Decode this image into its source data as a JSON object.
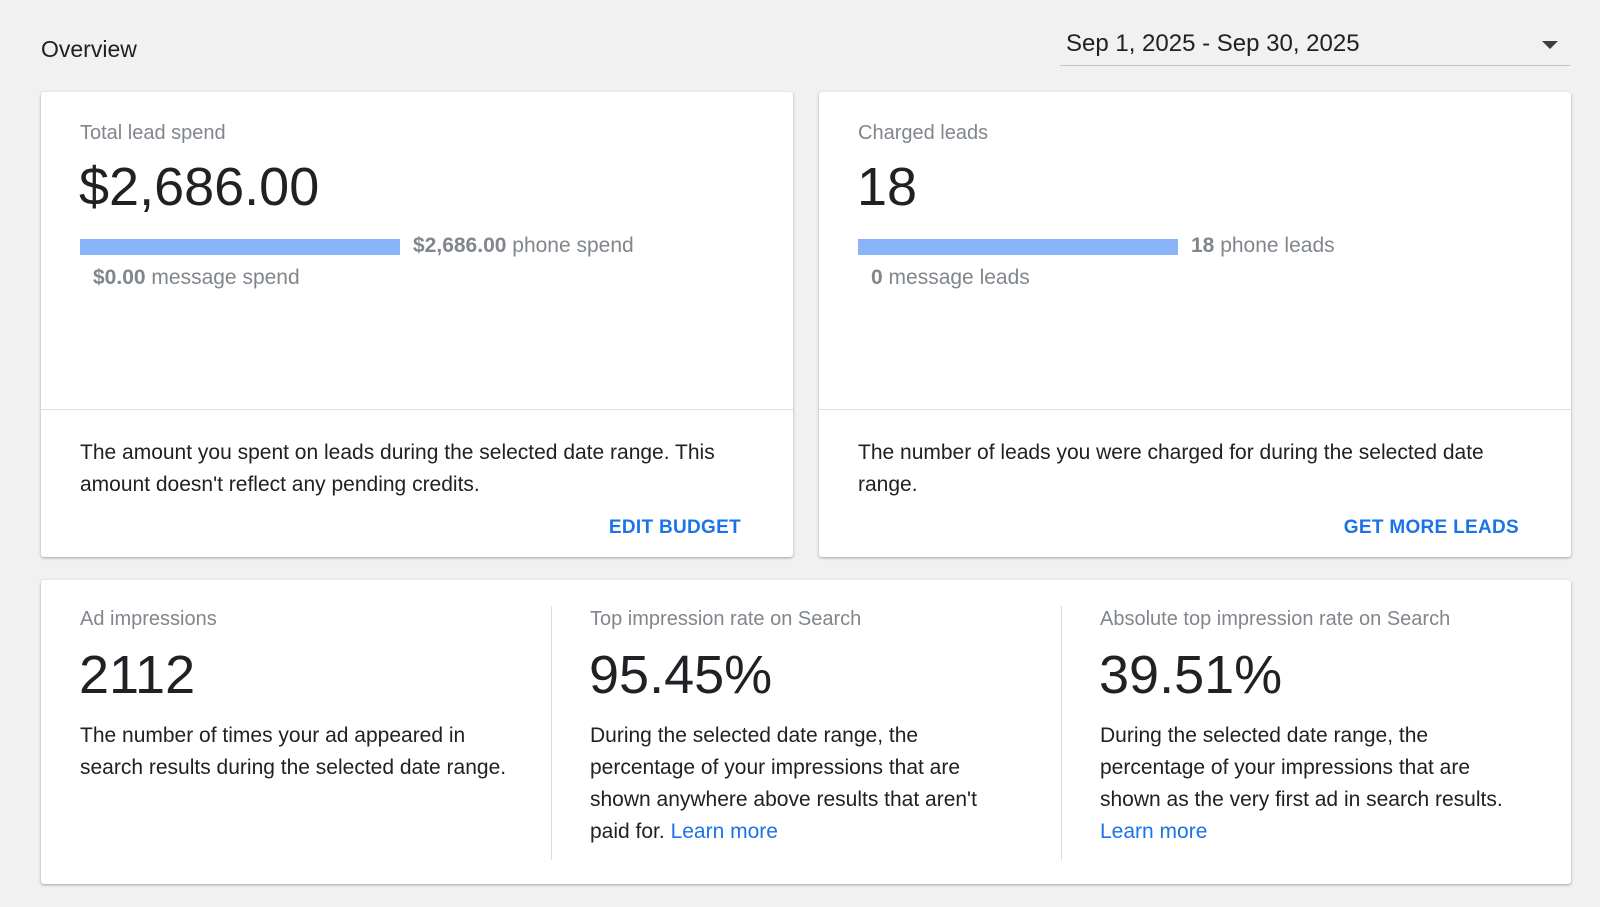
{
  "header": {
    "title": "Overview",
    "date_range": "Sep 1, 2025 - Sep 30, 2025"
  },
  "spend_card": {
    "label": "Total lead spend",
    "value": "$2,686.00",
    "phone_share": 1.0,
    "phone_amount": "$2,686.00",
    "phone_suffix": " phone spend",
    "message_amount": "$0.00",
    "message_suffix": " message spend",
    "description": "The amount you spent on leads during the selected date range. This amount doesn't reflect any pending credits.",
    "action": "EDIT BUDGET"
  },
  "leads_card": {
    "label": "Charged leads",
    "value": "18",
    "phone_share": 1.0,
    "phone_amount": "18",
    "phone_suffix": " phone leads",
    "message_amount": "0",
    "message_suffix": " message leads",
    "description": "The number of leads you were charged for during the selected date range.",
    "action": "GET MORE LEADS"
  },
  "impressions": {
    "label": "Ad impressions",
    "value": "2112",
    "description": "The number of times your ad appeared in search results during the selected date range."
  },
  "top_rate": {
    "label": "Top impression rate on Search",
    "value": "95.45%",
    "description": "During the selected date range, the percentage of your impressions that are shown anywhere above results that aren't paid for. ",
    "link": "Learn more"
  },
  "abs_top_rate": {
    "label": "Absolute top impression rate on Search",
    "value": "39.51%",
    "description": "During the selected date range, the percentage of your impressions that are shown as the very first ad in search results. ",
    "link": "Learn more"
  },
  "colors": {
    "bar": "#8ab4f8",
    "link": "#1a73e8",
    "muted_text": "#80868b"
  }
}
